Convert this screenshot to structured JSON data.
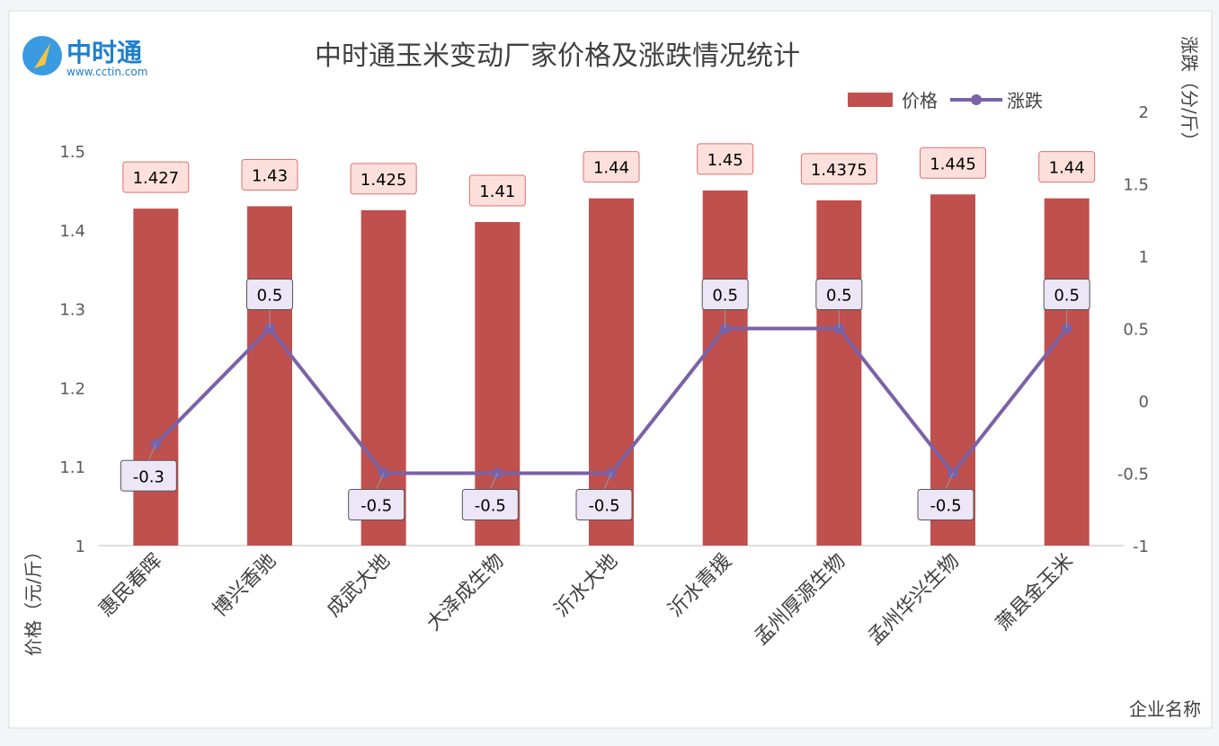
{
  "logo": {
    "name": "中时通",
    "url": "www.cctin.com"
  },
  "chart_data": {
    "type": "bar+line",
    "title": "中时通玉米变动厂家价格及涨跌情况统计",
    "categories": [
      "惠民春晖",
      "博兴香驰",
      "成武大地",
      "大泽成生物",
      "沂水大地",
      "沂水青援",
      "孟州厚源生物",
      "孟州华兴生物",
      "萧县金玉米"
    ],
    "series": [
      {
        "name": "价格",
        "type": "bar",
        "axis": "left",
        "color": "#c0504d",
        "values": [
          1.427,
          1.43,
          1.425,
          1.41,
          1.44,
          1.45,
          1.4375,
          1.445,
          1.44
        ]
      },
      {
        "name": "涨跌",
        "type": "line",
        "axis": "right",
        "color": "#7b62a6",
        "values": [
          -0.3,
          0.5,
          -0.5,
          -0.5,
          -0.5,
          0.5,
          0.5,
          -0.5,
          0.5
        ]
      }
    ],
    "ylabel": "价格（元/斤）",
    "y2label": "涨跌（分/斤）",
    "xlabel": "企业名称",
    "ylim": [
      1,
      1.5
    ],
    "yticks": [
      "1",
      "1.1",
      "1.2",
      "1.3",
      "1.4",
      "1.5"
    ],
    "y2lim": [
      -1,
      2
    ],
    "y2ticks": [
      "-1",
      "-0.5",
      "0",
      "0.5",
      "1",
      "1.5",
      "2"
    ],
    "legend": "top-right",
    "grid": false
  }
}
